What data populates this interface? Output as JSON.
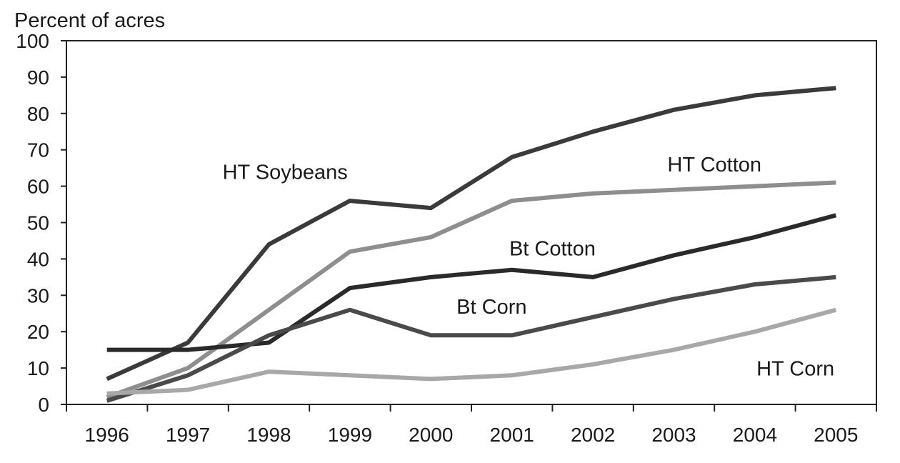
{
  "chart_data": {
    "type": "line",
    "title": "",
    "xlabel": "",
    "ylabel": "Percent of acres",
    "x": [
      "1996",
      "1997",
      "1998",
      "1999",
      "2000",
      "2001",
      "2002",
      "2003",
      "2004",
      "2005"
    ],
    "ylim": [
      0,
      100
    ],
    "yticks": [
      "0",
      "10",
      "20",
      "30",
      "40",
      "50",
      "60",
      "70",
      "80",
      "90",
      "100"
    ],
    "grid": false,
    "legend": "none (series labelled directly on the lines)",
    "series": [
      {
        "name": "HT Soybeans",
        "color": "#3a3a3a",
        "values": [
          7,
          17,
          44,
          56,
          54,
          68,
          75,
          81,
          85,
          87
        ]
      },
      {
        "name": "HT Cotton",
        "color": "#8e8e8e",
        "values": [
          2,
          10,
          26,
          42,
          46,
          56,
          58,
          59,
          60,
          61
        ]
      },
      {
        "name": "Bt Cotton",
        "color": "#2a2a2a",
        "values": [
          15,
          15,
          17,
          32,
          35,
          37,
          35,
          41,
          46,
          52
        ]
      },
      {
        "name": "Bt Corn",
        "color": "#4a4a4a",
        "values": [
          1,
          8,
          19,
          26,
          19,
          19,
          24,
          29,
          33,
          35
        ]
      },
      {
        "name": "HT Corn",
        "color": "#a8a8a8",
        "values": [
          3,
          4,
          9,
          8,
          7,
          8,
          11,
          15,
          20,
          26
        ]
      }
    ]
  }
}
